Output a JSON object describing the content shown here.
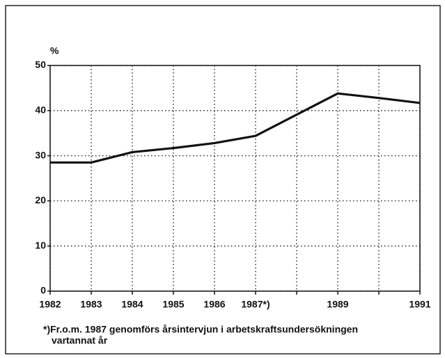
{
  "chart_data": {
    "type": "line",
    "ylabel": "%",
    "x": [
      1982,
      1983,
      1984,
      1985,
      1986,
      1987,
      1989,
      1990,
      1991
    ],
    "values": [
      28.5,
      28.5,
      30.8,
      31.7,
      32.8,
      34.4,
      43.8,
      42.8,
      41.7
    ],
    "color": "#111111",
    "xlim": [
      1982,
      1991
    ],
    "xticks": [
      1982,
      1983,
      1984,
      1985,
      1986,
      {
        "value": 1987,
        "label": "1987*)"
      },
      {
        "value": 1988,
        "label": null
      },
      1989,
      {
        "value": 1990,
        "label": null
      },
      1991
    ],
    "ylim": [
      0,
      50
    ],
    "yticks": [
      0,
      10,
      20,
      30,
      40,
      50
    ],
    "grid": true,
    "note": [
      "*)Fr.o.m. 1987 genomförs årsintervjun i arbetskraftsundersökningen",
      "vartannat år"
    ]
  }
}
